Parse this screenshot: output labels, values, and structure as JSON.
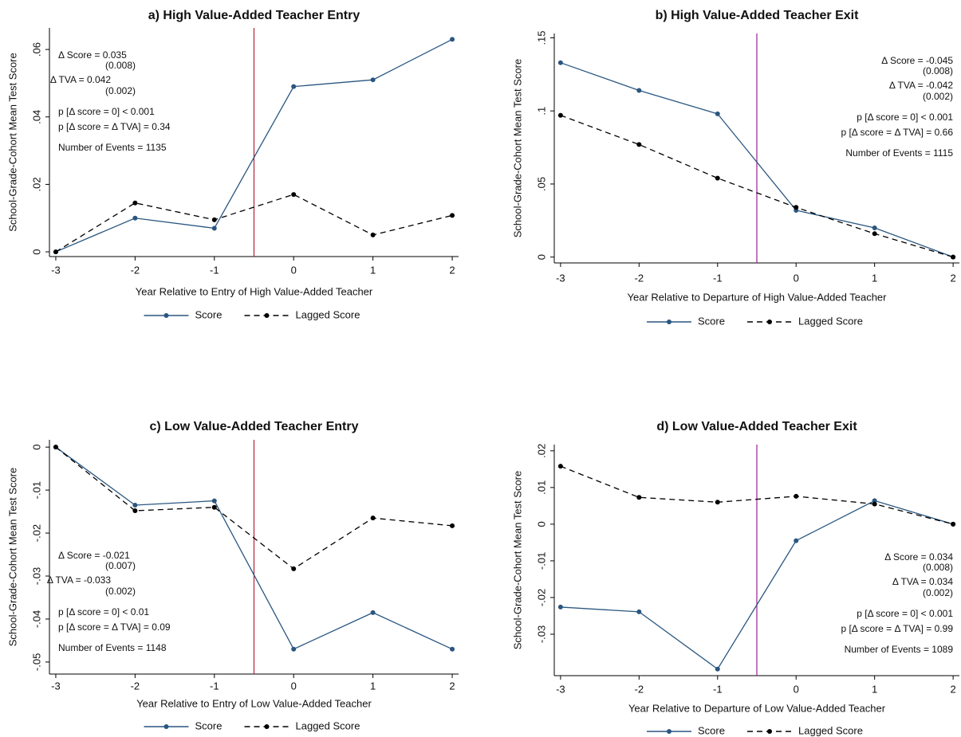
{
  "chart_data": [
    {
      "type": "line",
      "title": "a) High Value-Added Teacher Entry",
      "xlabel": "Year Relative to Entry of High Value-Added Teacher",
      "ylabel": "School-Grade-Cohort Mean Test Score",
      "x": [
        -3,
        -2,
        -1,
        0,
        1,
        2
      ],
      "series": [
        {
          "name": "Score",
          "color": "#2a5680",
          "line_style": "solid",
          "values": [
            0,
            0.01,
            0.007,
            0.049,
            0.051,
            0.063
          ]
        },
        {
          "name": "Lagged Score",
          "color": "#000000",
          "line_style": "dashed",
          "values": [
            0,
            0.0145,
            0.0095,
            0.017,
            0.005,
            0.0108
          ]
        }
      ],
      "xlim": [
        -3.08,
        2.08
      ],
      "ylim": [
        -0.0014,
        0.0664
      ],
      "xticks": [
        -3,
        -2,
        -1,
        0,
        1,
        2
      ],
      "yticks": [
        0,
        {
          "value": 0.02,
          "label": ".02"
        },
        {
          "value": 0.04,
          "label": ".04"
        },
        {
          "value": 0.06,
          "label": ".06"
        }
      ],
      "vline": -0.5,
      "vline_color": "#b0243a",
      "annotation_corner": "top-left",
      "annotations": [
        "Δ Score = 0.035",
        "(0.008)",
        "Δ TVA = 0.042",
        "(0.002)",
        "p [Δ score = 0] < 0.001",
        "p [Δ score = Δ TVA] = 0.34",
        "Number of Events = 1135"
      ]
    },
    {
      "type": "line",
      "title": "b) High Value-Added Teacher Exit",
      "xlabel": "Year Relative to Departure of High Value-Added Teacher",
      "ylabel": "School-Grade-Cohort Mean Test Score",
      "x": [
        -3,
        -2,
        -1,
        0,
        1,
        2
      ],
      "series": [
        {
          "name": "Score",
          "color": "#2a5680",
          "line_style": "solid",
          "values": [
            0.133,
            0.114,
            0.098,
            0.032,
            0.02,
            0
          ]
        },
        {
          "name": "Lagged Score",
          "color": "#000000",
          "line_style": "dashed",
          "values": [
            0.097,
            0.077,
            0.054,
            0.034,
            0.016,
            0
          ]
        }
      ],
      "xlim": [
        -3.08,
        2.08
      ],
      "ylim": [
        -0.004,
        0.153
      ],
      "xticks": [
        -3,
        -2,
        -1,
        0,
        1,
        2
      ],
      "yticks": [
        0,
        {
          "value": 0.05,
          "label": ".05"
        },
        {
          "value": 0.1,
          "label": ".1"
        },
        {
          "value": 0.15,
          "label": ".15"
        }
      ],
      "vline": -0.5,
      "vline_color": "#9c2090",
      "annotation_corner": "top-right",
      "annotations": [
        "Δ Score = -0.045",
        "(0.008)",
        "Δ TVA = -0.042",
        "(0.002)",
        "p [Δ score = 0] < 0.001",
        "p [Δ score = Δ TVA] = 0.66",
        "Number of Events = 1115"
      ]
    },
    {
      "type": "line",
      "title": "c) Low Value-Added Teacher Entry",
      "xlabel": "Year Relative to Entry of Low Value-Added Teacher",
      "ylabel": "School-Grade-Cohort Mean Test Score",
      "x": [
        -3,
        -2,
        -1,
        0,
        1,
        2
      ],
      "series": [
        {
          "name": "Score",
          "color": "#2a5680",
          "line_style": "solid",
          "values": [
            0,
            -0.0135,
            -0.0125,
            -0.047,
            -0.0385,
            -0.047
          ]
        },
        {
          "name": "Lagged Score",
          "color": "#000000",
          "line_style": "dashed",
          "values": [
            0,
            -0.0148,
            -0.014,
            -0.0283,
            -0.0165,
            -0.0183
          ]
        }
      ],
      "xlim": [
        -3.08,
        2.08
      ],
      "ylim": [
        -0.0528,
        0.0017
      ],
      "xticks": [
        -3,
        -2,
        -1,
        0,
        1,
        2
      ],
      "yticks": [
        {
          "value": -0.05,
          "label": "-.05"
        },
        {
          "value": -0.04,
          "label": "-.04"
        },
        {
          "value": -0.03,
          "label": "-.03"
        },
        {
          "value": -0.02,
          "label": "-.02"
        },
        {
          "value": -0.01,
          "label": "-.01"
        },
        0
      ],
      "vline": -0.5,
      "vline_color": "#b0243a",
      "annotation_corner": "bottom-left",
      "annotations": [
        "Δ Score = -0.021",
        "(0.007)",
        "Δ TVA = -0.033",
        "(0.002)",
        "p [Δ score = 0] < 0.01",
        "p [Δ score = Δ TVA] = 0.09",
        "Number of Events = 1148"
      ]
    },
    {
      "type": "line",
      "title": "d) Low Value-Added Teacher Exit",
      "xlabel": "Year Relative to Departure of Low Value-Added Teacher",
      "ylabel": "School-Grade-Cohort Mean Test Score",
      "x": [
        -3,
        -2,
        -1,
        0,
        1,
        2
      ],
      "series": [
        {
          "name": "Score",
          "color": "#2a5680",
          "line_style": "solid",
          "values": [
            -0.0226,
            -0.0239,
            -0.0395,
            -0.0045,
            0.0064,
            0
          ]
        },
        {
          "name": "Lagged Score",
          "color": "#000000",
          "line_style": "dashed",
          "values": [
            0.0158,
            0.0073,
            0.006,
            0.0076,
            0.0055,
            0
          ]
        }
      ],
      "xlim": [
        -3.08,
        2.08
      ],
      "ylim": [
        -0.0413,
        0.0217
      ],
      "xticks": [
        -3,
        -2,
        -1,
        0,
        1,
        2
      ],
      "yticks": [
        {
          "value": -0.03,
          "label": "-.03"
        },
        {
          "value": -0.02,
          "label": "-.02"
        },
        {
          "value": -0.01,
          "label": "-.01"
        },
        0,
        {
          "value": 0.01,
          "label": ".01"
        },
        {
          "value": 0.02,
          "label": ".02"
        }
      ],
      "vline": -0.5,
      "vline_color": "#9c2090",
      "annotation_corner": "bottom-right",
      "annotations": [
        "Δ Score = 0.034",
        "(0.008)",
        "Δ TVA = 0.034",
        "(0.002)",
        "p [Δ score = 0] < 0.001",
        "p [Δ score = Δ TVA] = 0.99",
        "Number of Events = 1089"
      ]
    }
  ]
}
